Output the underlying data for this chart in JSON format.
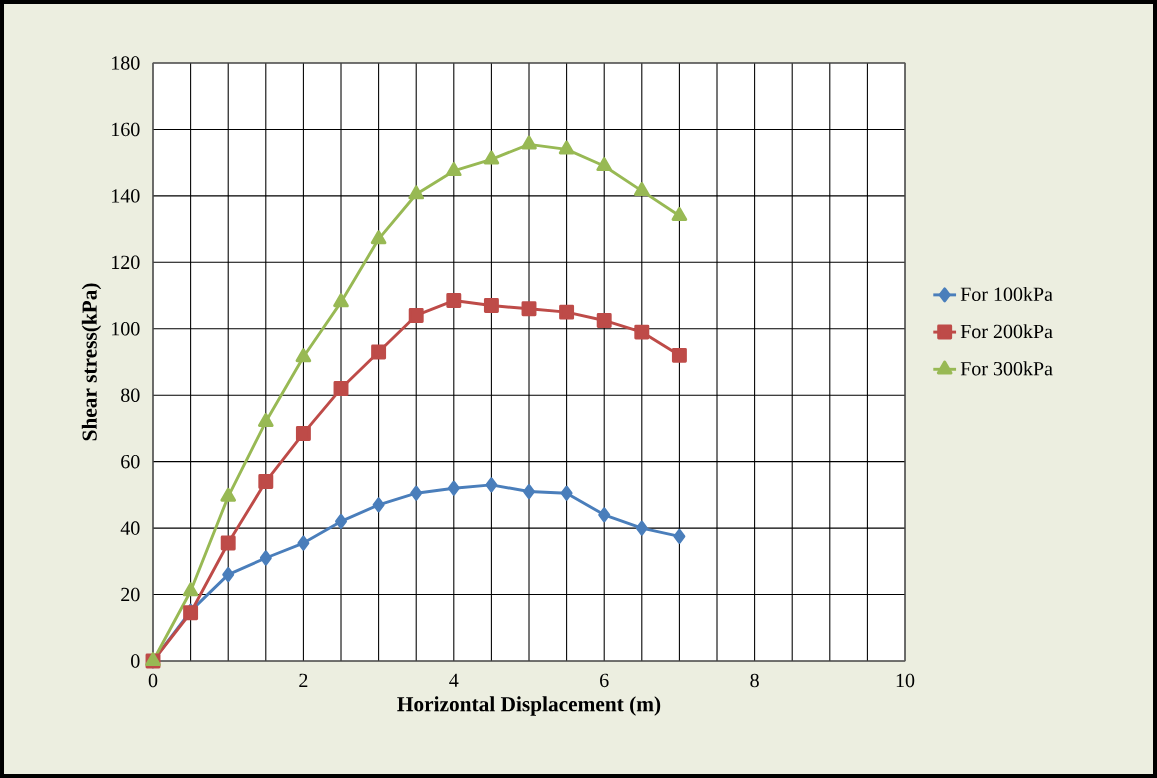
{
  "chart_data": {
    "type": "line",
    "xlabel": "Horizontal  Displacement (m)",
    "ylabel": "Shear stress(kPa)",
    "xlim": [
      0,
      10
    ],
    "xticks": [
      0,
      2,
      4,
      6,
      8,
      10
    ],
    "ylim": [
      0,
      180
    ],
    "yticks": [
      0,
      20,
      40,
      60,
      80,
      100,
      120,
      140,
      160,
      180
    ],
    "grid": true,
    "legend": "right",
    "line_style": "solid",
    "series": [
      {
        "name": "For 100kPa",
        "color": "#4a7ebb",
        "marker": "diamond",
        "x": [
          0,
          0.5,
          1,
          1.5,
          2,
          2.5,
          3,
          3.5,
          4,
          4.5,
          5,
          5.5,
          6,
          6.5,
          7
        ],
        "values": [
          0,
          15,
          26,
          31,
          35.5,
          42,
          47,
          50.5,
          52,
          53,
          51,
          50.5,
          44,
          40,
          37.5
        ]
      },
      {
        "name": "For 200kPa",
        "color": "#be4b48",
        "marker": "square",
        "x": [
          0,
          0.5,
          1,
          1.5,
          2,
          2.5,
          3,
          3.5,
          4,
          4.5,
          5,
          5.5,
          6,
          6.5,
          7
        ],
        "values": [
          0,
          14.5,
          35.5,
          54,
          68.5,
          82,
          93,
          104,
          108.5,
          107,
          106,
          105,
          102.5,
          99,
          92
        ]
      },
      {
        "name": "For 300kPa",
        "color": "#98b954",
        "marker": "triangle",
        "x": [
          0,
          0.5,
          1,
          1.5,
          2,
          2.5,
          3,
          3.5,
          4,
          4.5,
          5,
          5.5,
          6,
          6.5,
          7
        ],
        "values": [
          0,
          21,
          49.5,
          72,
          91.5,
          108,
          127,
          140.5,
          147.5,
          151,
          155.5,
          154,
          149,
          141.5,
          134
        ]
      }
    ]
  }
}
